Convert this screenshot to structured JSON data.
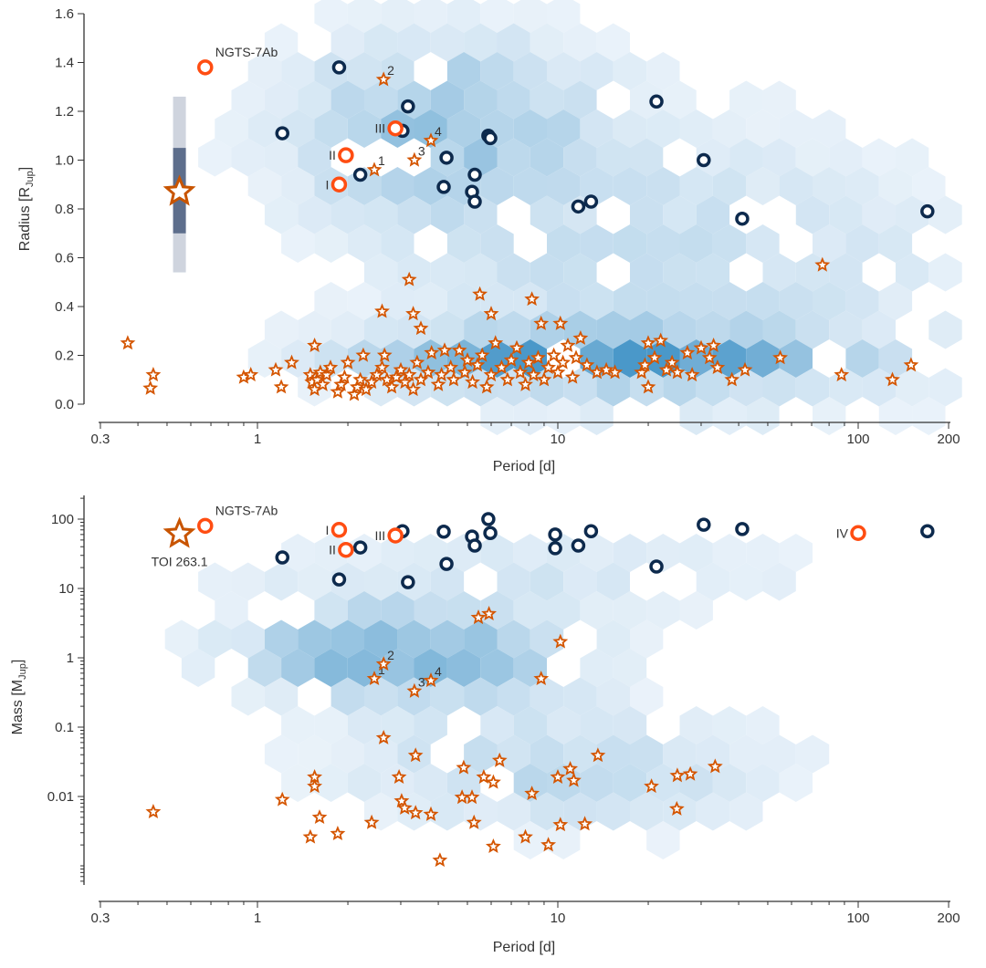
{
  "chart_data": [
    {
      "type": "scatter",
      "panel": "top",
      "xlabel": "Period [d]",
      "ylabel": "Radius [R",
      "ylabel_sub": "Jup",
      "ylabel_end": "]",
      "x_scale": "log",
      "xlim": [
        0.3,
        200
      ],
      "ylim": [
        0.0,
        1.6
      ],
      "x_ticks": [
        "0.3",
        "1",
        "10",
        "100",
        "200"
      ],
      "y_ticks": [
        "0.0",
        "0.2",
        "0.4",
        "0.6",
        "0.8",
        "1.0",
        "1.2",
        "1.4",
        "1.6"
      ],
      "background": "hexbin population density (blues)",
      "colors": {
        "known_bd": "#0d2a4d",
        "highlight": "#ff4d12",
        "planets": "#d45500",
        "toi": "#c85400",
        "hex_low": "#f4f8fd",
        "hex_high": "#4a98c9"
      },
      "known_bd": [
        [
          1.87,
          1.38
        ],
        [
          1.21,
          1.11
        ],
        [
          2.2,
          0.94
        ],
        [
          3.17,
          1.22
        ],
        [
          3.04,
          1.12
        ],
        [
          4.26,
          1.01
        ],
        [
          4.17,
          0.89
        ],
        [
          5.29,
          0.94
        ],
        [
          5.18,
          0.87
        ],
        [
          5.29,
          0.83
        ],
        [
          5.87,
          1.1
        ],
        [
          5.96,
          1.09
        ],
        [
          21.3,
          1.24
        ],
        [
          11.7,
          0.81
        ],
        [
          12.9,
          0.83
        ],
        [
          30.6,
          1.0
        ],
        [
          41.1,
          0.76
        ],
        [
          170,
          0.79
        ]
      ],
      "highlighted": [
        {
          "label": "NGTS-7Ab",
          "x": 0.67,
          "y": 1.38
        },
        {
          "label": "I",
          "x": 1.87,
          "y": 0.9
        },
        {
          "label": "II",
          "x": 1.97,
          "y": 1.02
        },
        {
          "label": "III",
          "x": 2.88,
          "y": 1.13
        }
      ],
      "numbered": [
        {
          "label": "1",
          "x": 2.45,
          "y": 0.96
        },
        {
          "label": "2",
          "x": 2.63,
          "y": 1.33
        },
        {
          "label": "3",
          "x": 3.33,
          "y": 1.0
        },
        {
          "label": "4",
          "x": 3.78,
          "y": 1.08
        }
      ],
      "toi": {
        "label": "",
        "x": 0.55,
        "y": 0.87,
        "err_1sigma": [
          0.7,
          1.05
        ],
        "err_2sigma": [
          0.54,
          1.26
        ]
      },
      "planets": [
        [
          0.37,
          0.25
        ],
        [
          0.45,
          0.12
        ],
        [
          0.44,
          0.065
        ],
        [
          76,
          0.57
        ],
        [
          88,
          0.12
        ],
        [
          130,
          0.1
        ],
        [
          150,
          0.16
        ],
        [
          55,
          0.19
        ],
        [
          3.2,
          0.51
        ],
        [
          5.5,
          0.45
        ],
        [
          6.0,
          0.37
        ],
        [
          8.2,
          0.43
        ],
        [
          2.6,
          0.38
        ],
        [
          3.3,
          0.37
        ],
        [
          3.5,
          0.31
        ],
        [
          8.8,
          0.33
        ],
        [
          10.2,
          0.33
        ],
        [
          1.55,
          0.24
        ],
        [
          20,
          0.07
        ],
        [
          38,
          0.1
        ],
        [
          42,
          0.14
        ],
        [
          0.9,
          0.11
        ],
        [
          0.95,
          0.12
        ],
        [
          1.15,
          0.14
        ],
        [
          1.2,
          0.07
        ],
        [
          1.3,
          0.17
        ],
        [
          1.5,
          0.12
        ],
        [
          1.52,
          0.09
        ],
        [
          1.55,
          0.06
        ],
        [
          1.58,
          0.1
        ],
        [
          1.62,
          0.13
        ],
        [
          1.65,
          0.08
        ],
        [
          1.7,
          0.12
        ],
        [
          1.75,
          0.15
        ],
        [
          1.85,
          0.05
        ],
        [
          1.9,
          0.08
        ],
        [
          1.95,
          0.11
        ],
        [
          2.0,
          0.17
        ],
        [
          2.1,
          0.04
        ],
        [
          2.15,
          0.07
        ],
        [
          2.2,
          0.1
        ],
        [
          2.25,
          0.2
        ],
        [
          2.3,
          0.06
        ],
        [
          2.4,
          0.09
        ],
        [
          2.5,
          0.12
        ],
        [
          2.6,
          0.15
        ],
        [
          2.65,
          0.2
        ],
        [
          2.7,
          0.1
        ],
        [
          2.8,
          0.07
        ],
        [
          2.9,
          0.11
        ],
        [
          3.0,
          0.14
        ],
        [
          3.1,
          0.09
        ],
        [
          3.2,
          0.12
        ],
        [
          3.3,
          0.06
        ],
        [
          3.4,
          0.17
        ],
        [
          3.5,
          0.1
        ],
        [
          3.7,
          0.13
        ],
        [
          3.8,
          0.21
        ],
        [
          4.0,
          0.08
        ],
        [
          4.1,
          0.12
        ],
        [
          4.2,
          0.22
        ],
        [
          4.4,
          0.15
        ],
        [
          4.5,
          0.1
        ],
        [
          4.7,
          0.22
        ],
        [
          4.9,
          0.13
        ],
        [
          5.0,
          0.18
        ],
        [
          5.2,
          0.09
        ],
        [
          5.4,
          0.16
        ],
        [
          5.6,
          0.2
        ],
        [
          5.8,
          0.07
        ],
        [
          6.0,
          0.12
        ],
        [
          6.2,
          0.25
        ],
        [
          6.5,
          0.15
        ],
        [
          6.8,
          0.1
        ],
        [
          7.0,
          0.18
        ],
        [
          7.3,
          0.23
        ],
        [
          7.5,
          0.13
        ],
        [
          7.8,
          0.08
        ],
        [
          8.0,
          0.17
        ],
        [
          8.3,
          0.12
        ],
        [
          8.6,
          0.19
        ],
        [
          9.0,
          0.1
        ],
        [
          9.3,
          0.15
        ],
        [
          9.7,
          0.2
        ],
        [
          10.0,
          0.13
        ],
        [
          10.4,
          0.17
        ],
        [
          10.8,
          0.24
        ],
        [
          11.2,
          0.11
        ],
        [
          11.5,
          0.19
        ],
        [
          11.9,
          0.27
        ],
        [
          12.5,
          0.16
        ],
        [
          13.5,
          0.13
        ],
        [
          14.5,
          0.14
        ],
        [
          15.5,
          0.13
        ],
        [
          19,
          0.13
        ],
        [
          19.5,
          0.16
        ],
        [
          20,
          0.25
        ],
        [
          21,
          0.19
        ],
        [
          22,
          0.26
        ],
        [
          23,
          0.14
        ],
        [
          24,
          0.17
        ],
        [
          25,
          0.13
        ],
        [
          27,
          0.21
        ],
        [
          28,
          0.12
        ],
        [
          30,
          0.23
        ],
        [
          32,
          0.19
        ],
        [
          33,
          0.24
        ],
        [
          34,
          0.15
        ]
      ]
    },
    {
      "type": "scatter",
      "panel": "bottom",
      "xlabel": "Period [d]",
      "ylabel": "Mass [M",
      "ylabel_sub": "Jup",
      "ylabel_end": "]",
      "x_scale": "log",
      "y_scale": "log",
      "xlim": [
        0.3,
        200
      ],
      "ylim": [
        0.00034,
        200
      ],
      "x_ticks": [
        "0.3",
        "1",
        "10",
        "100",
        "200"
      ],
      "y_ticks": [
        "0.01",
        "0.1",
        "1",
        "10",
        "100"
      ],
      "background": "hexbin population density (blues)",
      "known_bd": [
        [
          1.21,
          28
        ],
        [
          2.2,
          39
        ],
        [
          1.87,
          13.5
        ],
        [
          3.04,
          67
        ],
        [
          3.17,
          12.3
        ],
        [
          4.17,
          66
        ],
        [
          4.26,
          22.6
        ],
        [
          5.18,
          56
        ],
        [
          5.29,
          41.5
        ],
        [
          5.87,
          100
        ],
        [
          5.96,
          63
        ],
        [
          9.8,
          60
        ],
        [
          9.8,
          38
        ],
        [
          11.7,
          41.5
        ],
        [
          12.9,
          67
        ],
        [
          21.3,
          20.7
        ],
        [
          30.6,
          83
        ],
        [
          41.1,
          72
        ],
        [
          170,
          67
        ]
      ],
      "highlighted": [
        {
          "label": "NGTS-7Ab",
          "x": 0.67,
          "y": 80
        },
        {
          "label": "I",
          "x": 1.87,
          "y": 70
        },
        {
          "label": "II",
          "x": 1.97,
          "y": 36
        },
        {
          "label": "III",
          "x": 2.88,
          "y": 58
        },
        {
          "label": "IV",
          "x": 100,
          "y": 63
        }
      ],
      "numbered": [
        {
          "label": "1",
          "x": 2.45,
          "y": 0.5
        },
        {
          "label": "2",
          "x": 2.63,
          "y": 0.81
        },
        {
          "label": "3",
          "x": 3.33,
          "y": 0.33
        },
        {
          "label": "4",
          "x": 3.78,
          "y": 0.47
        }
      ],
      "toi": {
        "label": "TOI 263.1",
        "x": 0.55,
        "y": 61
      },
      "planets": [
        [
          0.45,
          0.006
        ],
        [
          1.21,
          0.009
        ],
        [
          1.55,
          0.019
        ],
        [
          1.55,
          0.014
        ],
        [
          1.61,
          0.005
        ],
        [
          1.5,
          0.0026
        ],
        [
          1.85,
          0.0029
        ],
        [
          2.4,
          0.0042
        ],
        [
          2.63,
          0.07
        ],
        [
          2.96,
          0.019
        ],
        [
          3.02,
          0.0086
        ],
        [
          3.09,
          0.0068
        ],
        [
          3.36,
          0.0058
        ],
        [
          3.36,
          0.039
        ],
        [
          3.78,
          0.0055
        ],
        [
          4.05,
          0.0012
        ],
        [
          4.86,
          0.026
        ],
        [
          4.8,
          0.0097
        ],
        [
          5.18,
          0.0097
        ],
        [
          5.26,
          0.0042
        ],
        [
          5.44,
          3.8
        ],
        [
          5.9,
          4.3
        ],
        [
          5.67,
          0.019
        ],
        [
          6.1,
          0.016
        ],
        [
          6.1,
          0.0019
        ],
        [
          6.4,
          0.033
        ],
        [
          7.8,
          0.0026
        ],
        [
          8.2,
          0.011
        ],
        [
          8.8,
          0.5
        ],
        [
          9.3,
          0.002
        ],
        [
          10.0,
          0.019
        ],
        [
          10.2,
          1.7
        ],
        [
          10.2,
          0.0039
        ],
        [
          11.0,
          0.025
        ],
        [
          11.3,
          0.017
        ],
        [
          12.3,
          0.004
        ],
        [
          13.6,
          0.039
        ],
        [
          20.5,
          0.014
        ],
        [
          24.9,
          0.0066
        ],
        [
          25,
          0.02
        ],
        [
          27.6,
          0.021
        ],
        [
          33.4,
          0.027
        ]
      ]
    }
  ]
}
